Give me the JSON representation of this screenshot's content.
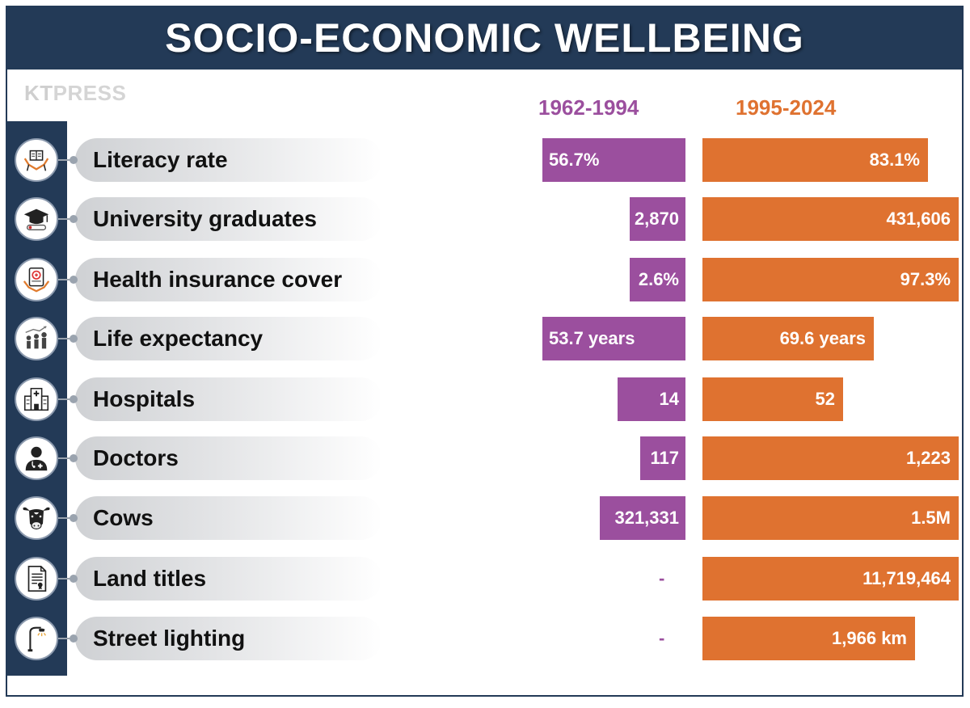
{
  "title": "SOCIO-ECONOMIC WELLBEING",
  "logo": {
    "mark": "KT",
    "text": "PRESS"
  },
  "colors": {
    "header": "#233a57",
    "period1": "#9b4f9e",
    "period2": "#df7230"
  },
  "chart_data": {
    "type": "bar",
    "title": "SOCIO-ECONOMIC WELLBEING",
    "series": [
      {
        "name": "1962-1994",
        "color": "#9b4f9e",
        "labels": [
          "56.7%",
          "2,870",
          "2.6%",
          "53.7 years",
          "14",
          "117",
          "321,331",
          "-",
          "-"
        ],
        "values": [
          56.7,
          2870,
          2.6,
          53.7,
          14,
          117,
          321331,
          null,
          null
        ]
      },
      {
        "name": "1995-2024",
        "color": "#df7230",
        "labels": [
          "83.1%",
          "431,606",
          "97.3%",
          "69.6 years",
          "52",
          "1,223",
          "1.5M",
          "11,719,464",
          "1,966 km"
        ],
        "values": [
          83.1,
          431606,
          97.3,
          69.6,
          52,
          1223,
          1500000,
          11719464,
          1966
        ]
      }
    ],
    "rows": [
      {
        "category": "Literacy rate",
        "icon": "book-hands-icon",
        "p1_fill": 0.92,
        "p2_fill": 0.88
      },
      {
        "category": "University graduates",
        "icon": "graduation-cap-icon",
        "p1_fill": 0.36,
        "p2_fill": 1.0
      },
      {
        "category": "Health insurance cover",
        "icon": "health-insurance-icon",
        "p1_fill": 0.36,
        "p2_fill": 1.0
      },
      {
        "category": "Life expectancy",
        "icon": "people-growth-icon",
        "p1_fill": 0.92,
        "p2_fill": 0.67
      },
      {
        "category": "Hospitals",
        "icon": "hospital-icon",
        "p1_fill": 0.44,
        "p2_fill": 0.55
      },
      {
        "category": "Doctors",
        "icon": "doctor-icon",
        "p1_fill": 0.29,
        "p2_fill": 1.0
      },
      {
        "category": "Cows",
        "icon": "cow-icon",
        "p1_fill": 0.55,
        "p2_fill": 1.0
      },
      {
        "category": "Land titles",
        "icon": "document-icon",
        "p1_fill": 0,
        "p2_fill": 1.0
      },
      {
        "category": "Street lighting",
        "icon": "street-lamp-icon",
        "p1_fill": 0,
        "p2_fill": 0.83
      }
    ]
  }
}
